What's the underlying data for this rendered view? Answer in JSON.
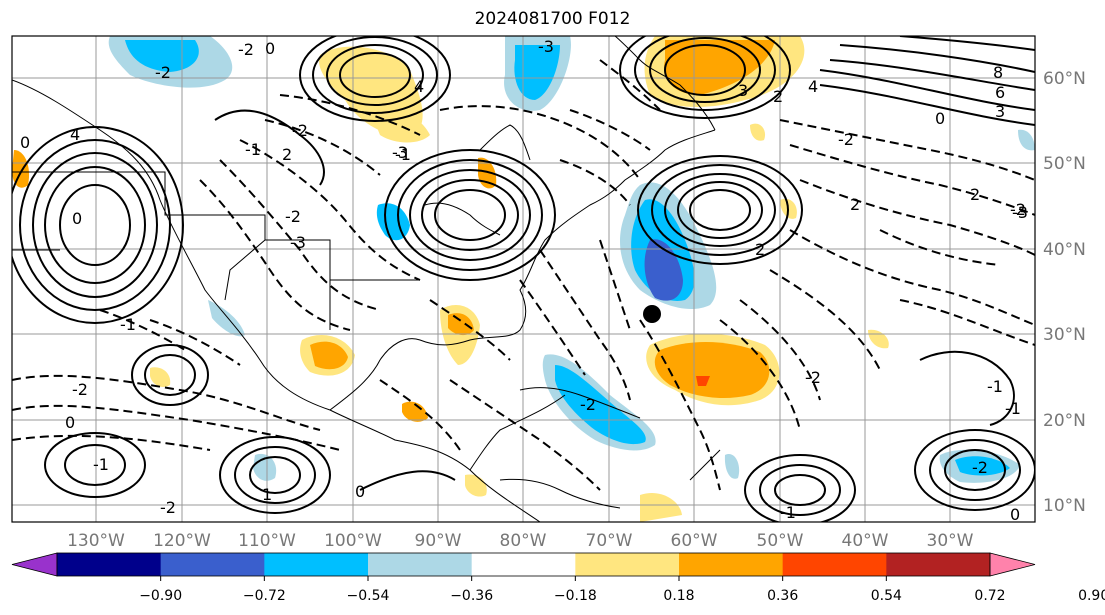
{
  "title": "2024081700 F012",
  "lon_labels": [
    "130°W",
    "120°W",
    "110°W",
    "100°W",
    "90°W",
    "80°W",
    "70°W",
    "60°W",
    "50°W",
    "40°W",
    "30°W"
  ],
  "lat_labels": [
    "60°N",
    "50°N",
    "40°N",
    "30°N",
    "20°N",
    "10°N"
  ],
  "colorbar": {
    "ticks": [
      "−0.90",
      "−0.72",
      "−0.54",
      "−0.36",
      "−0.18",
      "0.18",
      "0.36",
      "0.54",
      "0.72",
      "0.90"
    ],
    "colors": [
      "#9932cc",
      "#00008b",
      "#3a5fcd",
      "#00bfff",
      "#add8e6",
      "#ffffff",
      "#ffe680",
      "#ffa500",
      "#ff4500",
      "#b22222",
      "#ff82ab"
    ]
  },
  "contour_labels": [
    {
      "text": "-2"
    },
    {
      "text": "-2"
    },
    {
      "text": "0"
    },
    {
      "text": "4"
    },
    {
      "text": "-3"
    },
    {
      "text": "-2"
    },
    {
      "text": "2"
    },
    {
      "text": "-1"
    },
    {
      "text": "0"
    },
    {
      "text": "4"
    },
    {
      "text": "-2"
    },
    {
      "text": "-3"
    },
    {
      "text": "-1"
    },
    {
      "text": "-3"
    },
    {
      "text": "0"
    },
    {
      "text": "-1"
    },
    {
      "text": "-2"
    },
    {
      "text": "0"
    },
    {
      "text": "-1"
    },
    {
      "text": "-2"
    },
    {
      "text": "0"
    },
    {
      "text": "1"
    },
    {
      "text": "-2"
    },
    {
      "text": "3"
    },
    {
      "text": "2"
    },
    {
      "text": "4"
    },
    {
      "text": "0"
    },
    {
      "text": "8"
    },
    {
      "text": "6"
    },
    {
      "text": "3"
    },
    {
      "text": "-2"
    },
    {
      "text": "2"
    },
    {
      "text": "2"
    },
    {
      "text": "-2"
    },
    {
      "text": "-3"
    },
    {
      "text": "-2"
    },
    {
      "text": "-1"
    },
    {
      "text": "-2"
    },
    {
      "text": "-1"
    },
    {
      "text": "0"
    },
    {
      "text": "-1"
    },
    {
      "text": "2"
    }
  ]
}
